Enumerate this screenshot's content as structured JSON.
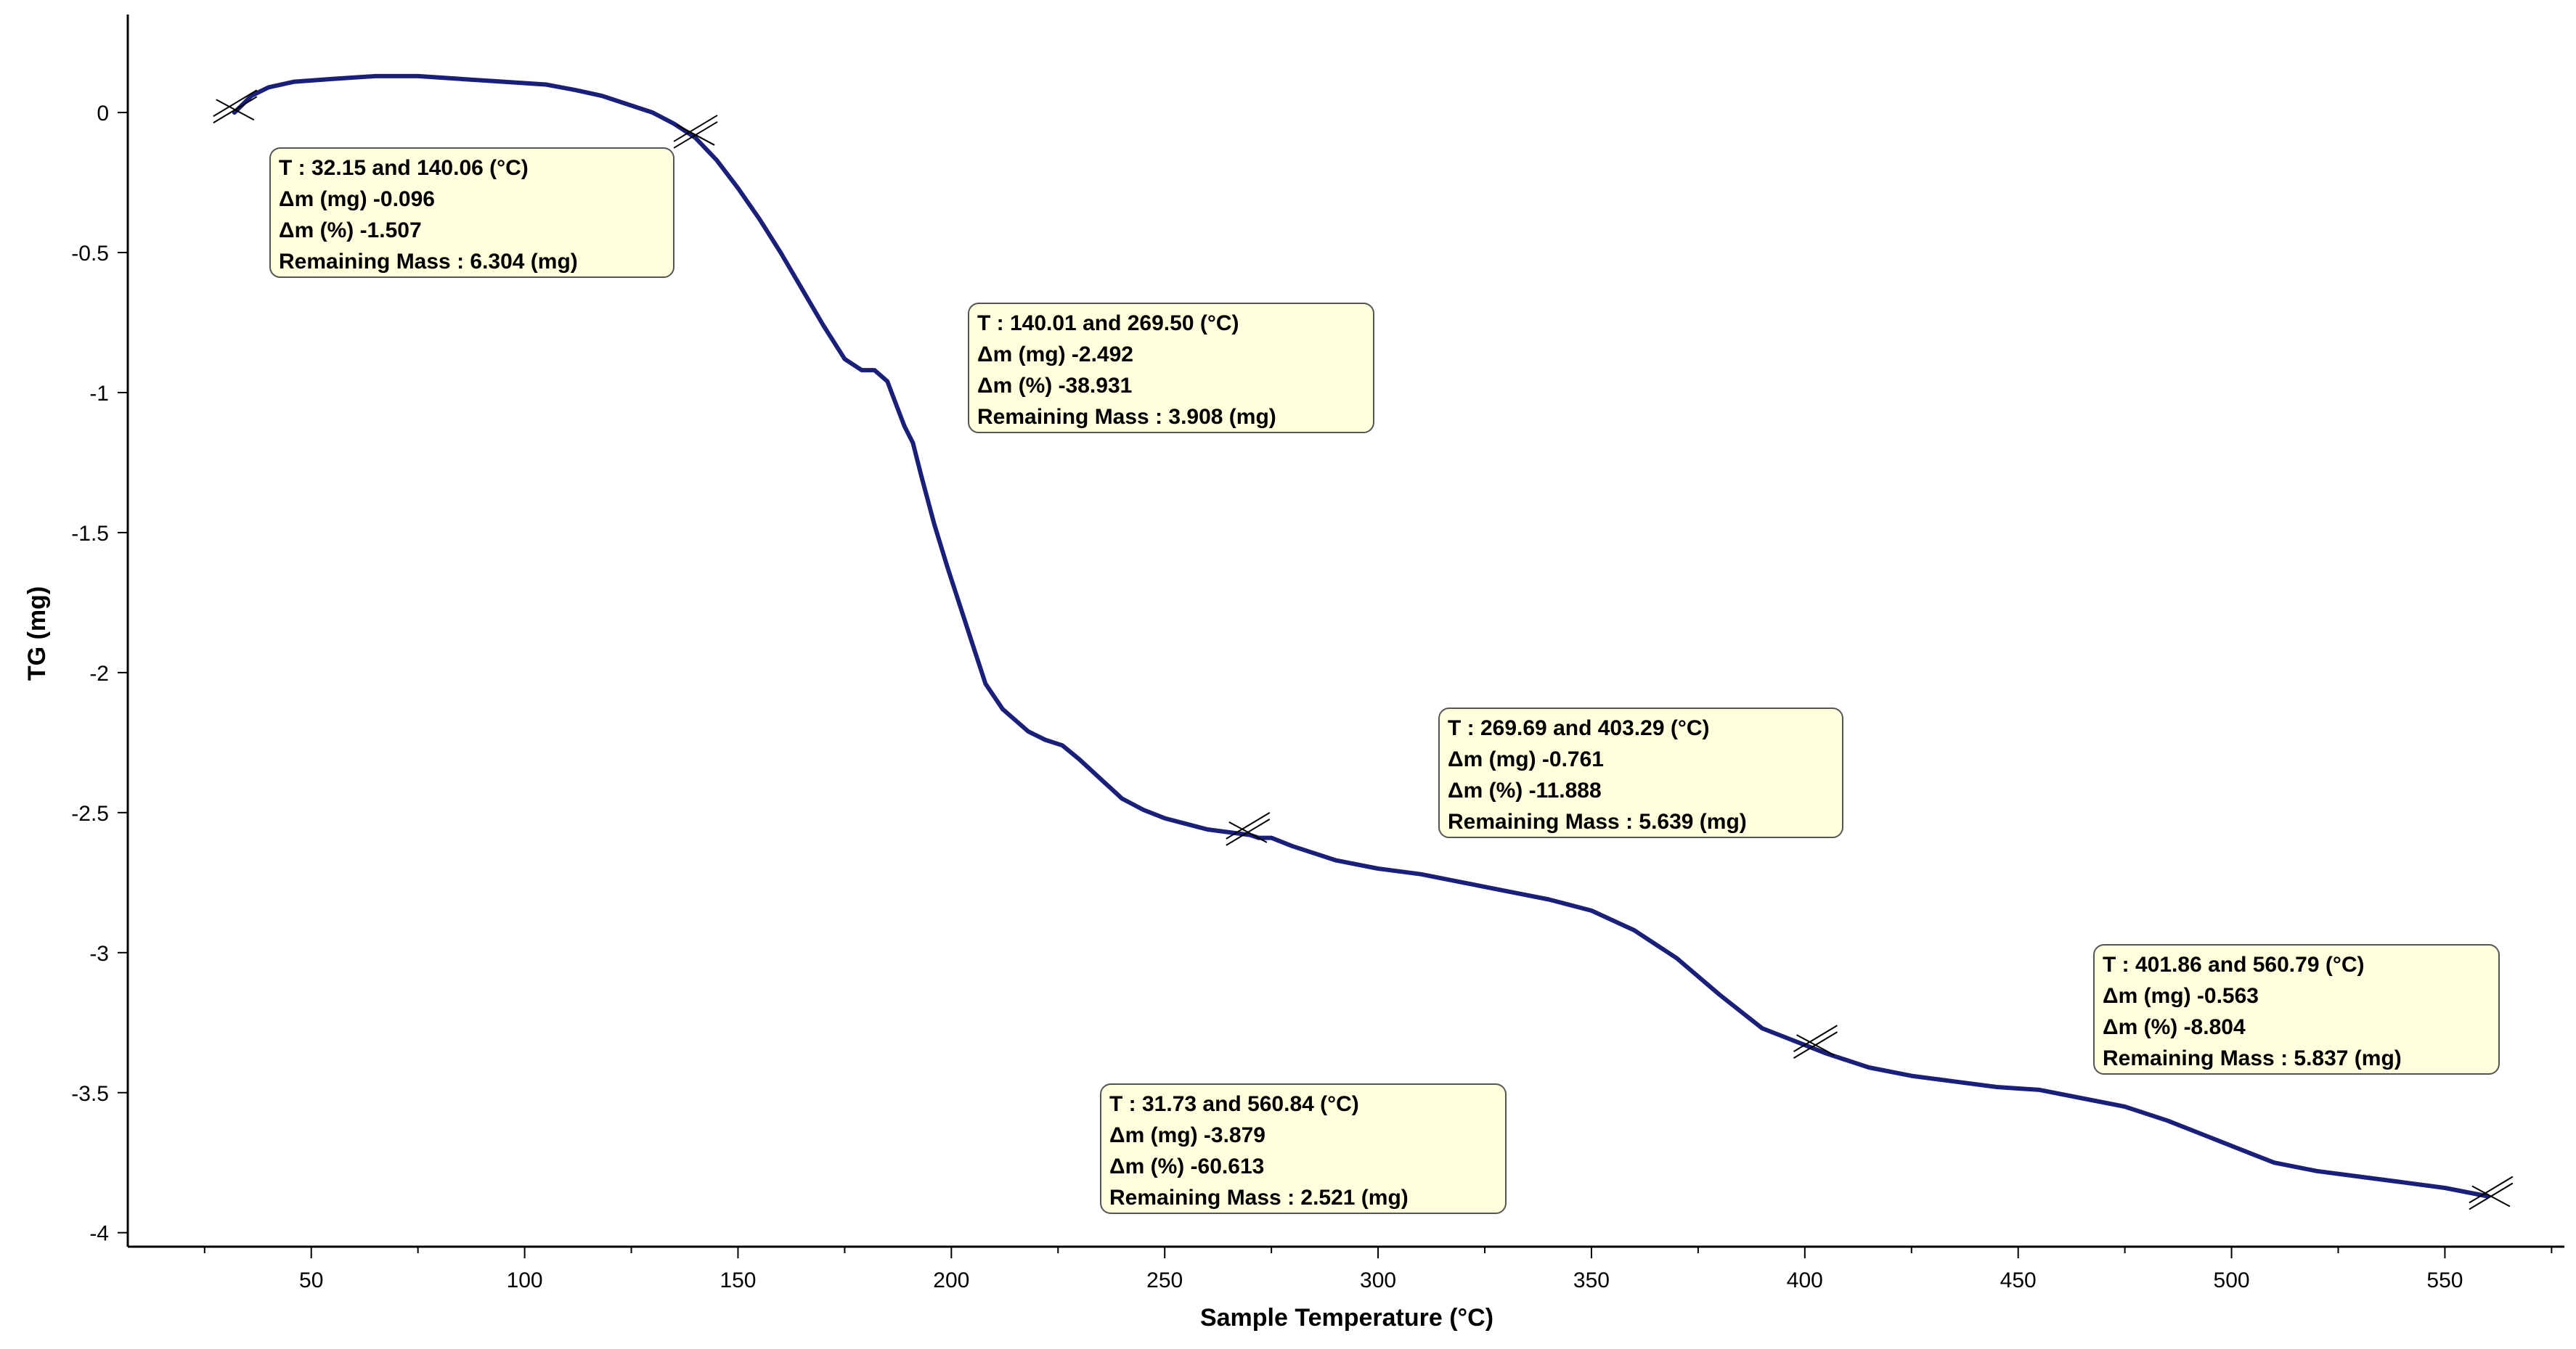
{
  "chart_data": {
    "type": "line",
    "title": "",
    "xlabel": "Sample Temperature (°C)",
    "ylabel": "TG (mg)",
    "xlim": [
      7,
      578
    ],
    "ylim": [
      -4.05,
      0.35
    ],
    "x_ticks": [
      50,
      100,
      150,
      200,
      250,
      300,
      350,
      400,
      450,
      500,
      550
    ],
    "x_minor_ticks": [
      25,
      75,
      125,
      175,
      225,
      275,
      325,
      375,
      425,
      475,
      525,
      575
    ],
    "y_ticks": [
      0,
      -0.5,
      -1,
      -1.5,
      -2,
      -2.5,
      -3,
      -3.5,
      -4
    ],
    "y_tick_labels": [
      "0",
      "-0.5",
      "-1",
      "-1.5",
      "-2",
      "-2.5",
      "-3",
      "-3.5",
      "-4"
    ],
    "grid": false,
    "legend": "none",
    "line_color": "#1a1f7a",
    "series": [
      {
        "name": "TG",
        "x": [
          32,
          34,
          36,
          40,
          46,
          55,
          65,
          75,
          85,
          95,
          105,
          112,
          118,
          124,
          130,
          135,
          140,
          145,
          150,
          155,
          160,
          165,
          170,
          175,
          179,
          182,
          185,
          187,
          189,
          191,
          193,
          196,
          199,
          202,
          205,
          208,
          212,
          215,
          218,
          222,
          226,
          230,
          235,
          240,
          245,
          250,
          255,
          260,
          265,
          270,
          272,
          275,
          280,
          290,
          300,
          310,
          320,
          330,
          340,
          350,
          360,
          370,
          380,
          390,
          400,
          405,
          415,
          425,
          435,
          445,
          455,
          465,
          475,
          485,
          495,
          505,
          510,
          520,
          530,
          540,
          550,
          560
        ],
        "y": [
          0.0,
          0.03,
          0.06,
          0.09,
          0.11,
          0.12,
          0.13,
          0.13,
          0.12,
          0.11,
          0.1,
          0.08,
          0.06,
          0.03,
          0.0,
          -0.04,
          -0.09,
          -0.17,
          -0.27,
          -0.38,
          -0.5,
          -0.63,
          -0.76,
          -0.88,
          -0.92,
          -0.92,
          -0.96,
          -1.04,
          -1.12,
          -1.18,
          -1.3,
          -1.47,
          -1.62,
          -1.76,
          -1.9,
          -2.04,
          -2.13,
          -2.17,
          -2.21,
          -2.24,
          -2.26,
          -2.31,
          -2.38,
          -2.45,
          -2.49,
          -2.52,
          -2.54,
          -2.56,
          -2.57,
          -2.58,
          -2.59,
          -2.59,
          -2.62,
          -2.67,
          -2.7,
          -2.72,
          -2.75,
          -2.78,
          -2.81,
          -2.85,
          -2.92,
          -3.02,
          -3.15,
          -3.27,
          -3.33,
          -3.36,
          -3.41,
          -3.44,
          -3.46,
          -3.48,
          -3.49,
          -3.52,
          -3.55,
          -3.6,
          -3.66,
          -3.72,
          -3.75,
          -3.78,
          -3.8,
          -3.82,
          -3.84,
          -3.87
        ]
      }
    ],
    "step_markers": [
      {
        "x": 32.15,
        "y": 0.01
      },
      {
        "x": 140.06,
        "y": -0.08
      },
      {
        "x": 269.5,
        "y": -2.57
      },
      {
        "x": 402.5,
        "y": -3.33
      },
      {
        "x": 560.8,
        "y": -3.87
      }
    ],
    "annotations": [
      {
        "lines": [
          "T : 32.15 and 140.06 (°C)",
          "Δm (mg) -0.096",
          "Δm (%) -1.507",
          "Remaining Mass : 6.304 (mg)"
        ]
      },
      {
        "lines": [
          "T : 140.01 and 269.50 (°C)",
          "Δm (mg) -2.492",
          "Δm (%) -38.931",
          "Remaining Mass : 3.908 (mg)"
        ]
      },
      {
        "lines": [
          "T : 269.69 and 403.29 (°C)",
          "Δm (mg) -0.761",
          "Δm (%) -11.888",
          "Remaining Mass : 5.639 (mg)"
        ]
      },
      {
        "lines": [
          "T : 401.86 and 560.79 (°C)",
          "Δm (mg) -0.563",
          "Δm (%) -8.804",
          "Remaining Mass : 5.837 (mg)"
        ]
      },
      {
        "lines": [
          "T : 31.73 and 560.84 (°C)",
          "Δm (mg) -3.879",
          "Δm (%) -60.613",
          "Remaining Mass : 2.521 (mg)"
        ]
      }
    ],
    "annotation_fill": "#ffffdd",
    "annotation_border": "#555555"
  }
}
